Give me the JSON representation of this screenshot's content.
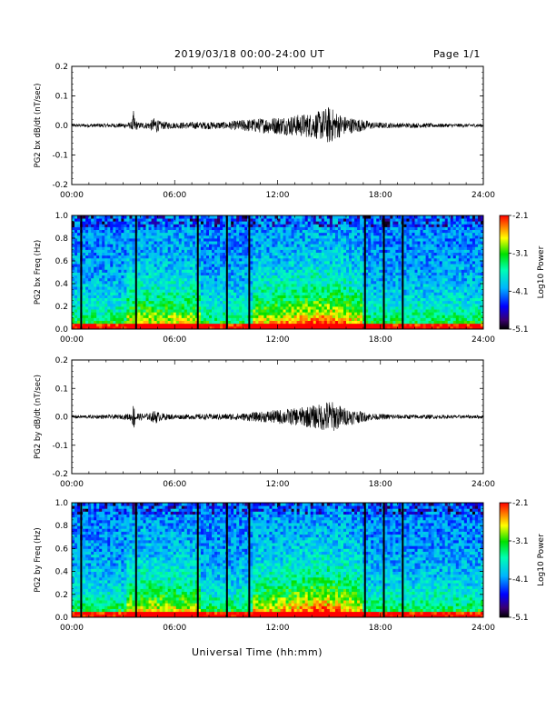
{
  "header": {
    "title": "2019/03/18  00:00-24:00 UT",
    "page": "Page 1/1"
  },
  "xaxis_title": "Universal Time (hh:mm)",
  "chart_data": [
    {
      "type": "line",
      "ylabel": "PG2 bx dB/dt (nT/sec)",
      "xlim": [
        0,
        24
      ],
      "ylim": [
        -0.2,
        0.2
      ],
      "x_ticks": [
        "00:00",
        "06:00",
        "12:00",
        "18:00",
        "24:00"
      ],
      "y_ticks": [
        "-0.2",
        "-0.1",
        "0.0",
        "0.1",
        "0.2"
      ],
      "y_tick_values": [
        -0.2,
        -0.1,
        0.0,
        0.1,
        0.2
      ],
      "envelope": {
        "hours": [
          0,
          1,
          2,
          3,
          3.5,
          3.6,
          3.7,
          3.9,
          4.5,
          4.9,
          5.1,
          5.6,
          6,
          7,
          8,
          9,
          10,
          11,
          12,
          13,
          13.5,
          14,
          14.5,
          15,
          15.5,
          16,
          16.5,
          17,
          17.5,
          18,
          19,
          20,
          21,
          22,
          23,
          24
        ],
        "amplitude": [
          0.006,
          0.006,
          0.007,
          0.008,
          0.012,
          0.05,
          0.02,
          0.01,
          0.012,
          0.03,
          0.015,
          0.012,
          0.01,
          0.012,
          0.013,
          0.012,
          0.02,
          0.025,
          0.03,
          0.035,
          0.04,
          0.042,
          0.05,
          0.065,
          0.045,
          0.03,
          0.025,
          0.02,
          0.012,
          0.01,
          0.008,
          0.008,
          0.007,
          0.006,
          0.006,
          0.006
        ]
      }
    },
    {
      "type": "heatmap",
      "ylabel": "PG2 bx Freq (Hz)",
      "xlim": [
        0,
        24
      ],
      "ylim": [
        0.0,
        1.0
      ],
      "x_ticks": [
        "00:00",
        "06:00",
        "12:00",
        "18:00",
        "24:00"
      ],
      "y_ticks": [
        "0.0",
        "0.2",
        "0.4",
        "0.6",
        "0.8",
        "1.0"
      ],
      "y_tick_values": [
        0.0,
        0.2,
        0.4,
        0.6,
        0.8,
        1.0
      ],
      "colorbar": {
        "label": "Log10 Power",
        "ticks": [
          "-2.1",
          "-3.1",
          "-4.1",
          "-5.1"
        ],
        "tick_values": [
          -2.1,
          -3.1,
          -4.1,
          -5.1
        ],
        "range": [
          -5.1,
          -2.1
        ]
      },
      "gaps_hours": [
        0.55,
        3.75,
        7.35,
        9.05,
        10.35,
        17.1,
        18.2,
        19.3
      ]
    },
    {
      "type": "line",
      "ylabel": "PG2 by dB/dt (nT/sec)",
      "xlim": [
        0,
        24
      ],
      "ylim": [
        -0.2,
        0.2
      ],
      "x_ticks": [
        "00:00",
        "06:00",
        "12:00",
        "18:00",
        "24:00"
      ],
      "y_ticks": [
        "-0.2",
        "-0.1",
        "0.0",
        "0.1",
        "0.2"
      ],
      "y_tick_values": [
        -0.2,
        -0.1,
        0.0,
        0.1,
        0.2
      ],
      "envelope": {
        "hours": [
          0,
          1,
          2,
          3,
          3.5,
          3.6,
          3.7,
          3.9,
          4.5,
          4.9,
          5.1,
          5.6,
          6,
          7,
          8,
          9,
          10,
          11,
          12,
          13,
          13.5,
          14,
          14.5,
          15,
          15.5,
          16,
          16.5,
          17,
          17.5,
          18,
          19,
          20,
          21,
          22,
          23,
          24
        ],
        "amplitude": [
          0.006,
          0.006,
          0.007,
          0.008,
          0.015,
          0.05,
          0.03,
          0.012,
          0.012,
          0.025,
          0.015,
          0.01,
          0.008,
          0.009,
          0.01,
          0.011,
          0.013,
          0.018,
          0.025,
          0.03,
          0.035,
          0.04,
          0.045,
          0.06,
          0.045,
          0.03,
          0.025,
          0.018,
          0.012,
          0.01,
          0.008,
          0.008,
          0.007,
          0.006,
          0.006,
          0.006
        ]
      }
    },
    {
      "type": "heatmap",
      "ylabel": "PG2 by Freq (Hz)",
      "xlim": [
        0,
        24
      ],
      "ylim": [
        0.0,
        1.0
      ],
      "x_ticks": [
        "00:00",
        "06:00",
        "12:00",
        "18:00",
        "24:00"
      ],
      "y_ticks": [
        "0.0",
        "0.2",
        "0.4",
        "0.6",
        "0.8",
        "1.0"
      ],
      "y_tick_values": [
        0.0,
        0.2,
        0.4,
        0.6,
        0.8,
        1.0
      ],
      "colorbar": {
        "label": "Log10 Power",
        "ticks": [
          "-2.1",
          "-3.1",
          "-4.1",
          "-5.1"
        ],
        "tick_values": [
          -2.1,
          -3.1,
          -4.1,
          -5.1
        ],
        "range": [
          -5.1,
          -2.1
        ]
      },
      "gaps_hours": [
        0.55,
        3.75,
        7.35,
        9.05,
        10.35,
        17.1,
        18.2,
        19.3
      ]
    }
  ]
}
